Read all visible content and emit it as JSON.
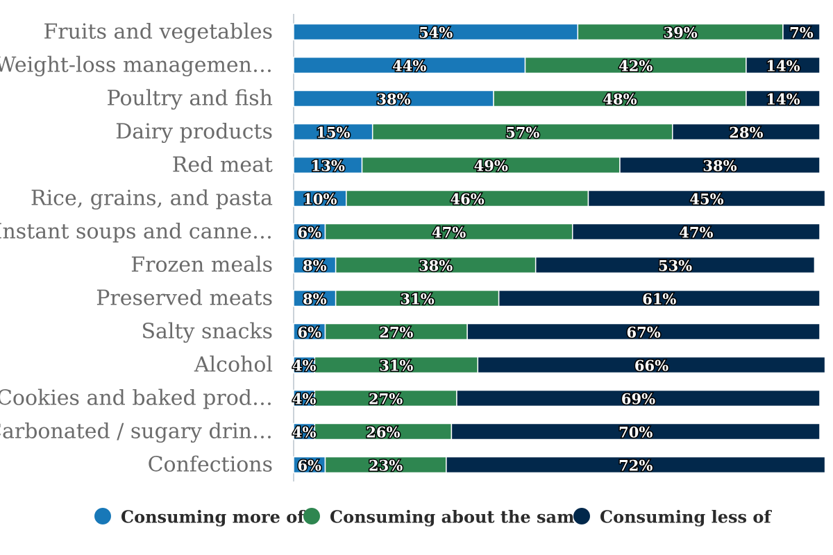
{
  "chart_data": {
    "type": "bar",
    "orientation": "horizontal",
    "stacked": true,
    "normalized_percent": true,
    "categories": [
      "Fruits and vegetables",
      "Weight-loss managemen…",
      "Poultry and fish",
      "Dairy products",
      "Red meat",
      "Rice, grains, and pasta",
      "Instant soups and canne…",
      "Frozen meals",
      "Preserved meats",
      "Salty snacks",
      "Alcohol",
      "Cookies and baked prod…",
      "Carbonated / sugary drin…",
      "Confections"
    ],
    "series": [
      {
        "name": "Consuming more of",
        "color": "#1878b8",
        "values": [
          54,
          44,
          38,
          15,
          13,
          10,
          6,
          8,
          8,
          6,
          4,
          4,
          4,
          6
        ]
      },
      {
        "name": "Consuming about the same",
        "color": "#2e8650",
        "values": [
          39,
          42,
          48,
          57,
          49,
          46,
          47,
          38,
          31,
          27,
          31,
          27,
          26,
          23
        ]
      },
      {
        "name": "Consuming less of",
        "color": "#02284b",
        "values": [
          7,
          14,
          14,
          28,
          38,
          45,
          47,
          53,
          61,
          67,
          66,
          69,
          70,
          72
        ]
      }
    ],
    "data_labels": [
      [
        "54%",
        "39%",
        "7%"
      ],
      [
        "44%",
        "42%",
        "14%"
      ],
      [
        "38%",
        "48%",
        "14%"
      ],
      [
        "15%",
        "57%",
        "28%"
      ],
      [
        "13%",
        "49%",
        "38%"
      ],
      [
        "10%",
        "46%",
        "45%"
      ],
      [
        "6%",
        "47%",
        "47%"
      ],
      [
        "8%",
        "38%",
        "53%"
      ],
      [
        "8%",
        "31%",
        "61%"
      ],
      [
        "6%",
        "27%",
        "67%"
      ],
      [
        "4%",
        "31%",
        "66%"
      ],
      [
        "4%",
        "27%",
        "69%"
      ],
      [
        "4%",
        "26%",
        "70%"
      ],
      [
        "6%",
        "23%",
        "72%"
      ]
    ],
    "xlim": [
      0,
      100
    ],
    "grid": false,
    "legend_position": "bottom",
    "legend_labels": [
      "Consuming more of",
      "Consuming about the sam",
      "Consuming less of"
    ],
    "title": "",
    "xlabel": "",
    "ylabel": ""
  }
}
